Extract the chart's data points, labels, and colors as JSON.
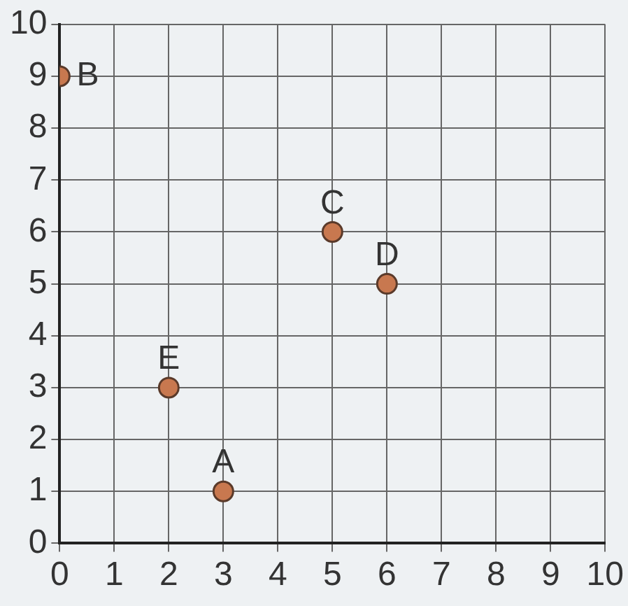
{
  "chart_data": {
    "type": "scatter",
    "x": [
      3,
      0,
      5,
      6,
      2
    ],
    "values": [
      1,
      9,
      6,
      5,
      3
    ],
    "color": "#c8784f",
    "marker": "circle",
    "xlim": [
      0,
      10
    ],
    "ylim": [
      0,
      10
    ],
    "xticks": [
      0,
      1,
      2,
      3,
      4,
      5,
      6,
      7,
      8,
      9,
      10
    ],
    "yticks": [
      0,
      1,
      2,
      3,
      4,
      5,
      6,
      7,
      8,
      9,
      10
    ],
    "grid": true,
    "annotations": [
      {
        "text": "A",
        "x": 3,
        "y": 1
      },
      {
        "text": "B",
        "x": 0,
        "y": 9
      },
      {
        "text": "C",
        "x": 5,
        "y": 6
      },
      {
        "text": "D",
        "x": 6,
        "y": 5
      },
      {
        "text": "E",
        "x": 2,
        "y": 3
      }
    ]
  }
}
